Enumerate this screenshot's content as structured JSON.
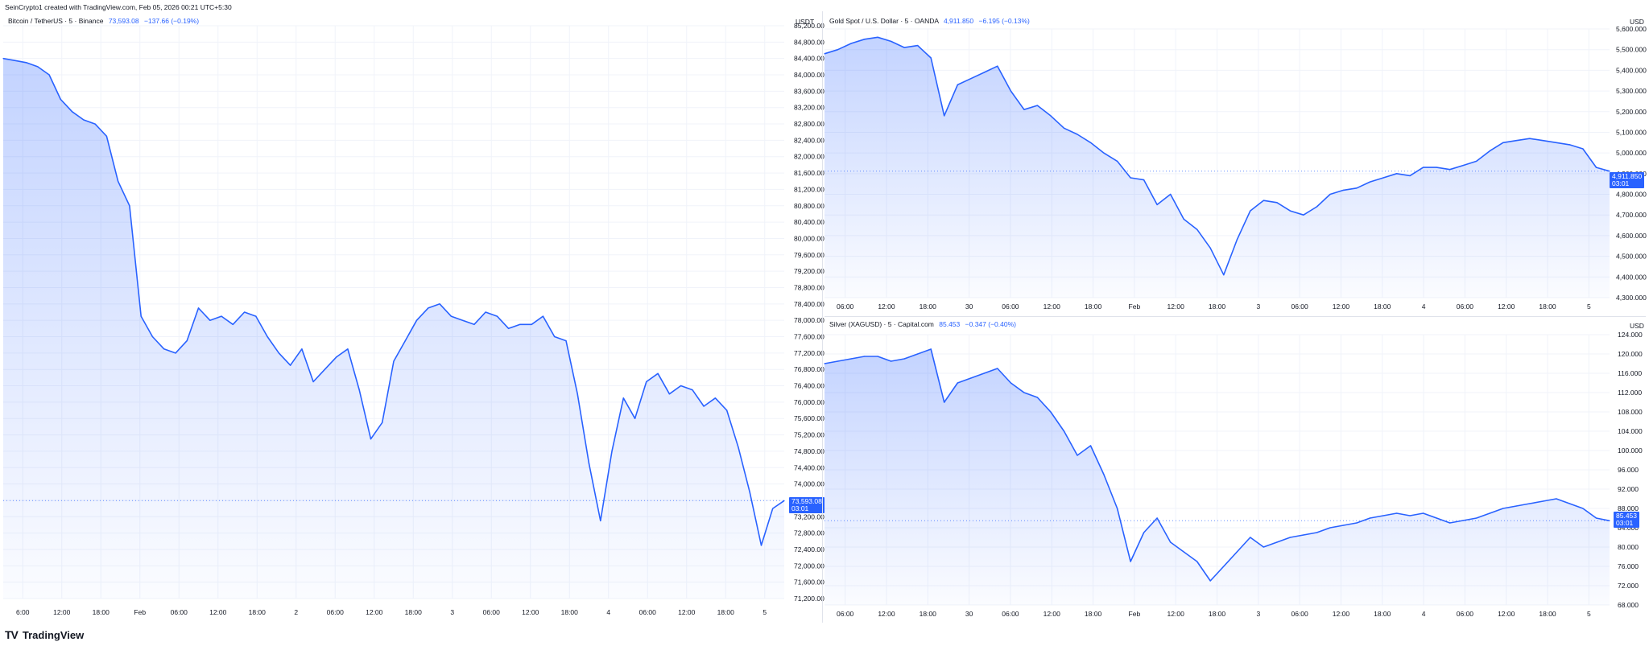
{
  "header": {
    "caption": "SeinCrypto1 created with TradingView.com, Feb 05, 2026 00:21 UTC+5:30"
  },
  "footer": {
    "logo_glyph": "TV",
    "brand": "TradingView"
  },
  "colors": {
    "line": "#2962ff",
    "fill_top": "#2962ff",
    "grid": "#f0f3fa",
    "axis_text": "#131722"
  },
  "charts": {
    "btc": {
      "symbol": "Bitcoin / TetherUS · 5 · Binance",
      "price": "73,593.08",
      "change": "−137.66 (−0.19%)",
      "unit": "USDT",
      "badge_price": "73,593.08",
      "badge_timer": "03:01"
    },
    "gold": {
      "symbol": "Gold Spot / U.S. Dollar · 5 · OANDA",
      "price": "4,911.850",
      "change": "−6.195 (−0.13%)",
      "unit": "USD",
      "badge_price": "4,911.850",
      "badge_timer": "03:01"
    },
    "silver": {
      "symbol": "Silver (XAGUSD) · 5 · Capital.com",
      "price": "85.453",
      "change": "−0.347 (−0.40%)",
      "unit": "USD",
      "badge_price": "85.453",
      "badge_timer": "03:01"
    }
  },
  "chart_data": [
    {
      "type": "area",
      "title": "Bitcoin / TetherUS · 5 · Binance",
      "ylabel": "USDT",
      "ylim": [
        71200,
        85200
      ],
      "yticks": [
        "85,200.00",
        "84,800.00",
        "84,400.00",
        "84,000.00",
        "83,600.00",
        "83,200.00",
        "82,800.00",
        "82,400.00",
        "82,000.00",
        "81,600.00",
        "81,200.00",
        "80,800.00",
        "80,400.00",
        "80,000.00",
        "79,600.00",
        "79,200.00",
        "78,800.00",
        "78,400.00",
        "78,000.00",
        "77,600.00",
        "77,200.00",
        "76,800.00",
        "76,400.00",
        "76,000.00",
        "75,600.00",
        "75,200.00",
        "74,800.00",
        "74,400.00",
        "74,000.00",
        "73,600.00",
        "73,200.00",
        "72,800.00",
        "72,400.00",
        "72,000.00",
        "71,600.00",
        "71,200.00"
      ],
      "xticks": [
        "6:00",
        "12:00",
        "18:00",
        "Feb",
        "06:00",
        "12:00",
        "18:00",
        "2",
        "06:00",
        "12:00",
        "18:00",
        "3",
        "06:00",
        "12:00",
        "18:00",
        "4",
        "06:00",
        "12:00",
        "18:00",
        "5"
      ],
      "last_price": 73593.08,
      "series": [
        {
          "values": [
            84400,
            84350,
            84300,
            84200,
            84000,
            83400,
            83100,
            82900,
            82800,
            82500,
            81400,
            80800,
            78100,
            77600,
            77300,
            77200,
            77500,
            78300,
            78000,
            78100,
            77900,
            78200,
            78100,
            77600,
            77200,
            76900,
            77300,
            76500,
            76800,
            77100,
            77300,
            76300,
            75100,
            75500,
            77000,
            77500,
            78000,
            78300,
            78400,
            78100,
            78000,
            77900,
            78200,
            78100,
            77800,
            77900,
            77900,
            78100,
            77600,
            77500,
            76200,
            74500,
            73100,
            74800,
            76100,
            75600,
            76500,
            76700,
            76200,
            76400,
            76300,
            75900,
            76100,
            75800,
            74900,
            73800,
            72500,
            73400,
            73593.08
          ]
        }
      ]
    },
    {
      "type": "area",
      "title": "Gold Spot / U.S. Dollar · 5 · OANDA",
      "ylabel": "USD",
      "ylim": [
        4300,
        5600
      ],
      "yticks": [
        "5,600.000",
        "5,500.000",
        "5,400.000",
        "5,300.000",
        "5,200.000",
        "5,100.000",
        "5,000.000",
        "4,900.000",
        "4,800.000",
        "4,700.000",
        "4,600.000",
        "4,500.000",
        "4,400.000",
        "4,300.000"
      ],
      "xticks": [
        "06:00",
        "12:00",
        "18:00",
        "30",
        "06:00",
        "12:00",
        "18:00",
        "Feb",
        "12:00",
        "18:00",
        "3",
        "06:00",
        "12:00",
        "18:00",
        "4",
        "06:00",
        "12:00",
        "18:00",
        "5"
      ],
      "last_price": 4911.85,
      "series": [
        {
          "values": [
            5480,
            5500,
            5530,
            5550,
            5560,
            5540,
            5510,
            5520,
            5460,
            5180,
            5330,
            5360,
            5390,
            5420,
            5300,
            5210,
            5230,
            5180,
            5120,
            5090,
            5050,
            5000,
            4960,
            4880,
            4870,
            4750,
            4800,
            4680,
            4630,
            4540,
            4410,
            4580,
            4720,
            4770,
            4760,
            4720,
            4700,
            4740,
            4800,
            4820,
            4830,
            4860,
            4880,
            4900,
            4890,
            4930,
            4930,
            4920,
            4940,
            4960,
            5010,
            5050,
            5060,
            5070,
            5060,
            5050,
            5040,
            5020,
            4930,
            4911.85
          ]
        }
      ]
    },
    {
      "type": "area",
      "title": "Silver (XAGUSD) · 5 · Capital.com",
      "ylabel": "USD",
      "ylim": [
        68,
        124
      ],
      "yticks": [
        "124.000",
        "120.000",
        "116.000",
        "112.000",
        "108.000",
        "104.000",
        "100.000",
        "96.000",
        "92.000",
        "88.000",
        "84.000",
        "80.000",
        "76.000",
        "72.000",
        "68.000"
      ],
      "xticks": [
        "06:00",
        "12:00",
        "18:00",
        "30",
        "06:00",
        "12:00",
        "18:00",
        "Feb",
        "12:00",
        "18:00",
        "3",
        "06:00",
        "12:00",
        "18:00",
        "4",
        "06:00",
        "12:00",
        "18:00",
        "5"
      ],
      "last_price": 85.453,
      "series": [
        {
          "values": [
            118,
            118.5,
            119,
            119.5,
            119.5,
            118.5,
            119,
            120,
            121,
            110,
            114,
            115,
            116,
            117,
            114,
            112,
            111,
            108,
            104,
            99,
            101,
            95,
            88,
            77,
            83,
            86,
            81,
            79,
            77,
            73,
            76,
            79,
            82,
            80,
            81,
            82,
            82.5,
            83,
            84,
            84.5,
            85,
            86,
            86.5,
            87,
            86.5,
            87,
            86,
            85,
            85.5,
            86,
            87,
            88,
            88.5,
            89,
            89.5,
            90,
            89,
            88,
            86,
            85.453
          ]
        }
      ]
    }
  ]
}
